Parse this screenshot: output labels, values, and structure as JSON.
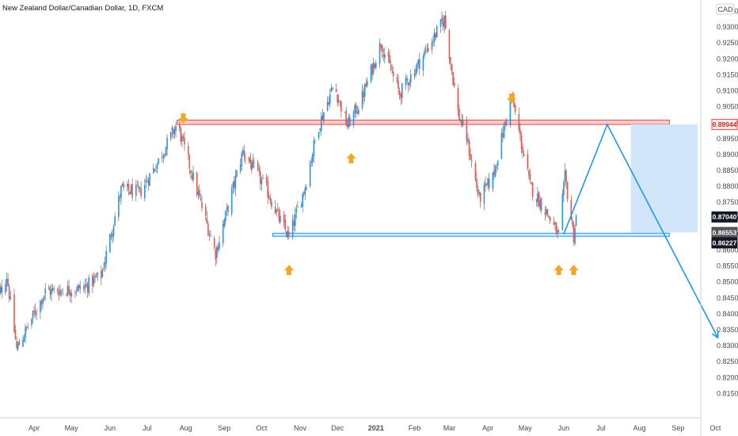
{
  "header": {
    "title": "New Zealand Dollar/Canadian Dollar, 1D, FXCM",
    "currency": "CAD"
  },
  "colors": {
    "up": "#2196f3",
    "down": "#ef5350",
    "wick": "#555555",
    "resistance_fill": "#f8c9c9",
    "resistance_stroke": "#e05050",
    "support_fill": "#cfe8fb",
    "support_stroke": "#2196f3",
    "target_zone": "#cfe5fa",
    "stop_zone": "#bdbdbd",
    "arrow": "#f5a623",
    "projection": "#2196f3"
  },
  "chart_data": {
    "type": "candlestick",
    "title": "New Zealand Dollar/Canadian Dollar, 1D, FXCM",
    "x_tick_labels": [
      "Apr",
      "May",
      "Jun",
      "Jul",
      "Aug",
      "Sep",
      "Oct",
      "Nov",
      "Dec",
      "2021",
      "Feb",
      "Mar",
      "Apr",
      "May",
      "Jun",
      "Jul",
      "Aug",
      "Sep",
      "Oct"
    ],
    "y_tick_labels": [
      "0.93500",
      "0.93000",
      "0.92500",
      "0.92000",
      "0.91500",
      "0.91000",
      "0.90500",
      "0.90000",
      "0.89500",
      "0.89000",
      "0.88500",
      "0.88000",
      "0.87500",
      "0.87000",
      "0.86500",
      "0.86000",
      "0.85500",
      "0.85000",
      "0.84500",
      "0.84000",
      "0.83500",
      "0.83000",
      "0.82500",
      "0.82000",
      "0.81500"
    ],
    "ylim": [
      0.8135,
      0.9395
    ],
    "price_labels": [
      {
        "label": "0.89944",
        "value": 0.89944,
        "kind": "resistance"
      },
      {
        "label": "0.87040",
        "value": 0.8704,
        "kind": "last"
      },
      {
        "label": "0.86553",
        "value": 0.86553,
        "kind": "support"
      },
      {
        "label": "0.86227",
        "value": 0.86227,
        "kind": "stop"
      }
    ],
    "resistance_zone": {
      "from": 0.8994,
      "to": 0.9008
    },
    "support_zone": {
      "from": 0.8643,
      "to": 0.8653
    },
    "target_zone": {
      "from": 0.86553,
      "to": 0.89944
    },
    "stop_zone": {
      "from": 0.86227,
      "to": 0.86553
    },
    "projection_path": [
      {
        "date": "2021-06-01",
        "price": 0.865
      },
      {
        "date": "2021-07-06",
        "price": 0.8994
      },
      {
        "date": "2021-10-03",
        "price": 0.8325
      }
    ],
    "key_points": [
      {
        "date": "2020-03-18",
        "price": 0.829,
        "note": "low"
      },
      {
        "date": "2020-07-25",
        "price": 0.8996,
        "note": "resistance touch"
      },
      {
        "date": "2020-08-25",
        "price": 0.859,
        "note": "low"
      },
      {
        "date": "2020-09-16",
        "price": 0.891,
        "note": "swing high"
      },
      {
        "date": "2020-10-23",
        "price": 0.864,
        "note": "support touch"
      },
      {
        "date": "2020-12-09",
        "price": 0.899,
        "note": "retest"
      },
      {
        "date": "2021-01-05",
        "price": 0.925,
        "note": "high"
      },
      {
        "date": "2021-02-25",
        "price": 0.9325,
        "note": "peak"
      },
      {
        "date": "2021-03-25",
        "price": 0.876,
        "note": "low"
      },
      {
        "date": "2021-04-20",
        "price": 0.9085,
        "note": "lower high"
      },
      {
        "date": "2021-05-28",
        "price": 0.8643,
        "note": "support touch"
      },
      {
        "date": "2021-06-09",
        "price": 0.8645,
        "note": "support touch"
      }
    ],
    "arrows": [
      {
        "date": "2020-07-30",
        "direction": "down"
      },
      {
        "date": "2020-10-23",
        "direction": "up"
      },
      {
        "date": "2020-12-12",
        "direction": "up"
      },
      {
        "date": "2021-04-20",
        "direction": "down"
      },
      {
        "date": "2021-05-28",
        "direction": "up"
      },
      {
        "date": "2021-06-09",
        "direction": "up"
      }
    ]
  }
}
